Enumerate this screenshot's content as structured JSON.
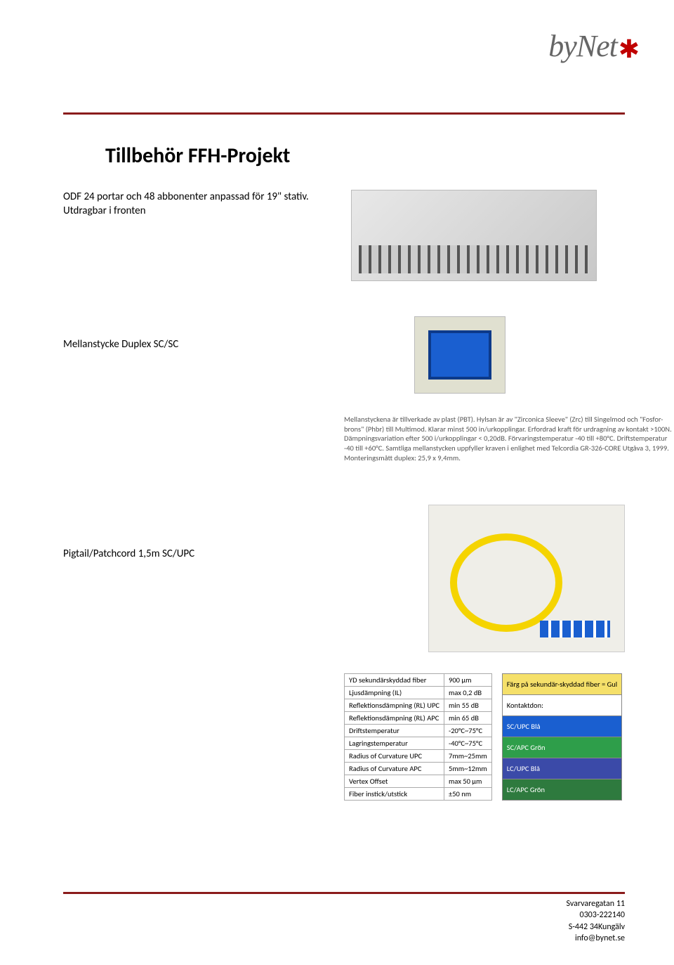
{
  "logo": {
    "text": "byNet",
    "star": "✱"
  },
  "title": "Tillbehör FFH-Projekt",
  "products": {
    "odf": {
      "text": "ODF 24 portar och 48 abbonenter anpassad för 19\" stativ. Utdragbar i fronten"
    },
    "adapter": {
      "text": "Mellanstycke Duplex SC/SC"
    },
    "pigtail": {
      "text": "Pigtail/Patchcord 1,5m SC/UPC"
    }
  },
  "adapter_spec": "Mellanstyckena är tillverkade av plast (PBT). Hylsan är av \"Zirconica Sleeve\" (Zrc) till Singelmod och \"Fosfor-brons\" (Phbr) till Multimod. Klarar minst 500 in/urkopplingar. Erfordrad kraft för urdragning av kontakt >100N. Dämpningsvariation efter 500 i/urkopplingar < 0,20dB. Förvaringstemperatur -40 till +80°C. Driftstemperatur -40 till +60°C. Samtliga mellanstycken uppfyller kraven i enlighet med Telcordia GR-326-CORE Utgåva 3, 1999. Monteringsmått duplex: 25,9 x 9,4mm.",
  "spec_table": {
    "rows": [
      [
        "YD sekundärskyddad fiber",
        "900 µm"
      ],
      [
        "Ljusdämpning (IL)",
        "max 0,2 dB"
      ],
      [
        "Reflektionsdämpning (RL) UPC",
        "min 55 dB"
      ],
      [
        "Reflektionsdämpning (RL) APC",
        "min 65 dB"
      ],
      [
        "Driftstemperatur",
        "-20°C~75°C"
      ],
      [
        "Lagringstemperatur",
        "-40°C~75°C"
      ],
      [
        "Radius of Curvature UPC",
        "7mm~25mm"
      ],
      [
        "Radius of Curvature APC",
        "5mm~12mm"
      ],
      [
        "Vertex Offset",
        "max 50 µm"
      ],
      [
        "Fiber instick/utstick",
        "±50 nm"
      ]
    ]
  },
  "color_table": {
    "header": "Färg på sekundär-skyddad fiber = Gul",
    "kontakt": "Kontaktdon:",
    "rows": [
      {
        "label": "SC/UPC Blå",
        "cls": "ct-scupc"
      },
      {
        "label": "SC/APC Grön",
        "cls": "ct-scapc"
      },
      {
        "label": "LC/UPC Blå",
        "cls": "ct-lcupc"
      },
      {
        "label": "LC/APC Grön",
        "cls": "ct-lcapc"
      }
    ]
  },
  "footer": {
    "line1": "Svarvaregatan 11",
    "line2": "0303-222140",
    "line3": "S-442 34Kungälv",
    "line4": "info@bynet.se"
  }
}
